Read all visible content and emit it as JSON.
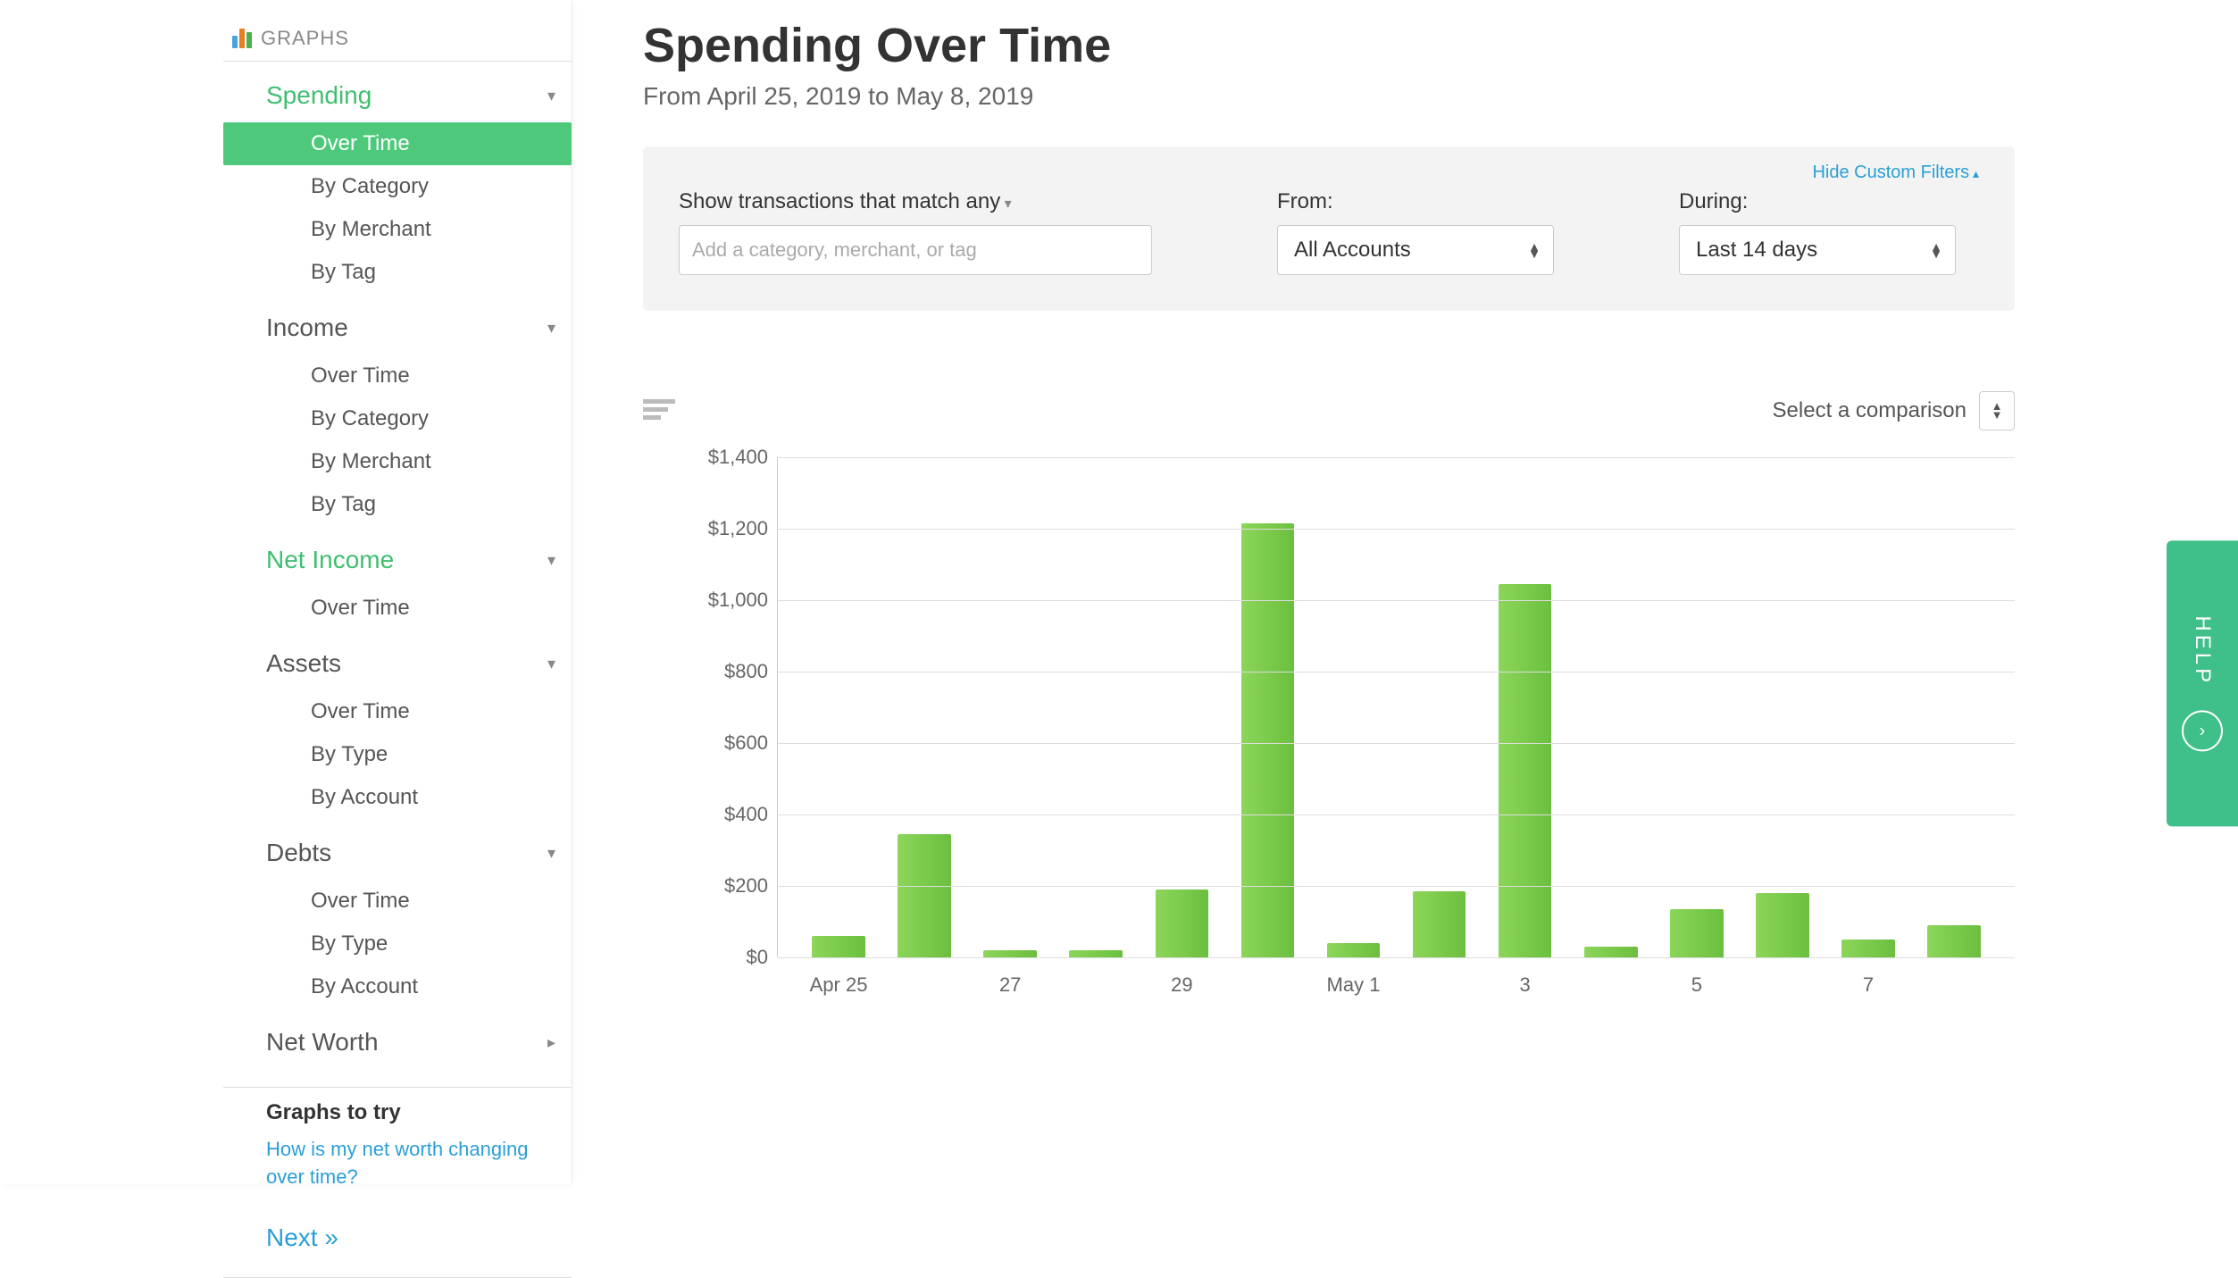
{
  "sidebar": {
    "header": "GRAPHS",
    "groups": [
      {
        "label": "Spending",
        "accent": true,
        "expandable": true,
        "items": [
          {
            "label": "Over Time",
            "active": true
          },
          {
            "label": "By Category"
          },
          {
            "label": "By Merchant"
          },
          {
            "label": "By Tag"
          }
        ]
      },
      {
        "label": "Income",
        "expandable": true,
        "items": [
          {
            "label": "Over Time"
          },
          {
            "label": "By Category"
          },
          {
            "label": "By Merchant"
          },
          {
            "label": "By Tag"
          }
        ]
      },
      {
        "label": "Net Income",
        "accent": true,
        "expandable": true,
        "items": [
          {
            "label": "Over Time"
          }
        ]
      },
      {
        "label": "Assets",
        "expandable": true,
        "items": [
          {
            "label": "Over Time"
          },
          {
            "label": "By Type"
          },
          {
            "label": "By Account"
          }
        ]
      },
      {
        "label": "Debts",
        "expandable": true,
        "items": [
          {
            "label": "Over Time"
          },
          {
            "label": "By Type"
          },
          {
            "label": "By Account"
          }
        ]
      },
      {
        "label": "Net Worth",
        "chevron": "right",
        "items": []
      }
    ],
    "try_title": "Graphs to try",
    "try_link": "How is my net worth changing over time?",
    "next": "Next »"
  },
  "page": {
    "title": "Spending Over Time",
    "subtitle": "From April 25, 2019 to May 8, 2019"
  },
  "filters": {
    "hide_label": "Hide Custom Filters",
    "match_label": "Show transactions that match",
    "match_mode": "any",
    "match_placeholder": "Add a category, merchant, or tag",
    "from_label": "From:",
    "from_value": "All Accounts",
    "during_label": "During:",
    "during_value": "Last 14 days"
  },
  "compare": {
    "label": "Select a comparison"
  },
  "chart": {
    "type": "bar",
    "ylim": [
      0,
      1400
    ],
    "ytick_step": 200,
    "yticks": [
      {
        "v": 0,
        "label": "$0"
      },
      {
        "v": 200,
        "label": "$200"
      },
      {
        "v": 400,
        "label": "$400"
      },
      {
        "v": 600,
        "label": "$600"
      },
      {
        "v": 800,
        "label": "$800"
      },
      {
        "v": 1000,
        "label": "$1,000"
      },
      {
        "v": 1200,
        "label": "$1,200"
      },
      {
        "v": 1400,
        "label": "$1,400"
      }
    ],
    "bars": [
      {
        "value": 60,
        "xlabel": "Apr 25"
      },
      {
        "value": 345,
        "xlabel": ""
      },
      {
        "value": 20,
        "xlabel": "27"
      },
      {
        "value": 20,
        "xlabel": ""
      },
      {
        "value": 190,
        "xlabel": "29"
      },
      {
        "value": 1215,
        "xlabel": ""
      },
      {
        "value": 40,
        "xlabel": "May 1"
      },
      {
        "value": 185,
        "xlabel": ""
      },
      {
        "value": 1045,
        "xlabel": "3"
      },
      {
        "value": 30,
        "xlabel": ""
      },
      {
        "value": 135,
        "xlabel": "5"
      },
      {
        "value": 180,
        "xlabel": ""
      },
      {
        "value": 50,
        "xlabel": "7"
      },
      {
        "value": 90,
        "xlabel": ""
      }
    ],
    "bar_gradient_from": "#8cd65a",
    "bar_gradient_to": "#6bbf3f",
    "grid_color": "#dddddd",
    "axis_color": "#cccccc",
    "label_color": "#666666",
    "label_fontsize": 22,
    "background_color": "#ffffff"
  },
  "help": {
    "label": "HELP"
  }
}
